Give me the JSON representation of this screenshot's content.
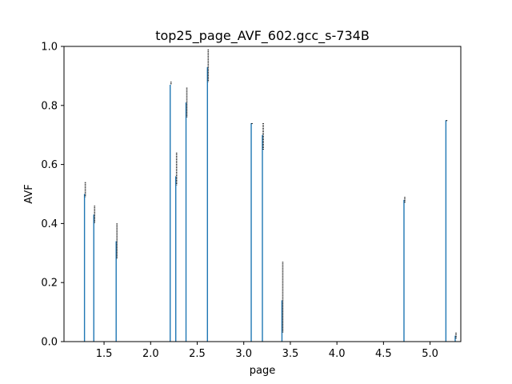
{
  "chart_data": {
    "type": "bar",
    "title": "top25_page_AVF_602.gcc_s-734B",
    "xlabel": "page",
    "ylabel": "AVF",
    "xlim": [
      1.07,
      5.33
    ],
    "ylim": [
      0,
      1.0
    ],
    "xticks": [
      1.5,
      2.0,
      2.5,
      3.0,
      3.5,
      4.0,
      4.5,
      5.0
    ],
    "xtick_labels": [
      "1.5",
      "2.0",
      "2.5",
      "3.0",
      "3.5",
      "4.0",
      "4.5",
      "5.0"
    ],
    "yticks": [
      0.0,
      0.2,
      0.4,
      0.6,
      0.8,
      1.0
    ],
    "ytick_labels": [
      "0.0",
      "0.2",
      "0.4",
      "0.6",
      "0.8",
      "1.0"
    ],
    "bar_color": "#1f77b4",
    "errorbar_color": "#000000",
    "grid": false,
    "legend": "none",
    "bars": [
      {
        "x": 1.29,
        "value": 0.5,
        "err_low": 0.49,
        "err_high": 0.54
      },
      {
        "x": 1.39,
        "value": 0.43,
        "err_low": 0.4,
        "err_high": 0.46
      },
      {
        "x": 1.63,
        "value": 0.34,
        "err_low": 0.28,
        "err_high": 0.4
      },
      {
        "x": 2.21,
        "value": 0.87,
        "err_low": 0.87,
        "err_high": 0.88
      },
      {
        "x": 2.27,
        "value": 0.56,
        "err_low": 0.53,
        "err_high": 0.64
      },
      {
        "x": 2.38,
        "value": 0.81,
        "err_low": 0.76,
        "err_high": 0.86
      },
      {
        "x": 2.61,
        "value": 0.93,
        "err_low": 0.88,
        "err_high": 0.99
      },
      {
        "x": 3.08,
        "value": 0.74,
        "err_low": 0.74,
        "err_high": 0.74
      },
      {
        "x": 3.2,
        "value": 0.7,
        "err_low": 0.65,
        "err_high": 0.74
      },
      {
        "x": 3.41,
        "value": 0.14,
        "err_low": 0.03,
        "err_high": 0.27
      },
      {
        "x": 4.72,
        "value": 0.48,
        "err_low": 0.47,
        "err_high": 0.49
      },
      {
        "x": 5.17,
        "value": 0.75,
        "err_low": 0.75,
        "err_high": 0.75
      },
      {
        "x": 5.27,
        "value": 0.02,
        "err_low": 0.01,
        "err_high": 0.03
      }
    ]
  }
}
